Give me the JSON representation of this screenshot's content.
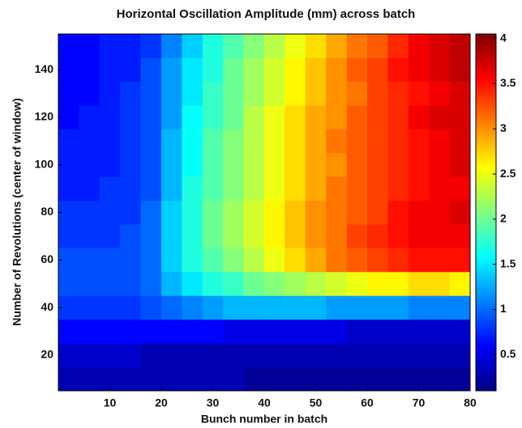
{
  "chart_data": {
    "type": "heatmap",
    "title": "Horizontal Oscillation Amplitude (mm) across batch",
    "x_label": "Bunch number in batch",
    "y_label": "Number of Revolutions (center of window)",
    "x_bins": [
      0,
      4,
      8,
      12,
      16,
      20,
      24,
      28,
      32,
      36,
      40,
      44,
      48,
      52,
      56,
      60,
      64,
      68,
      72,
      76,
      80
    ],
    "y": [
      10,
      20,
      30,
      40,
      50,
      60,
      70,
      80,
      90,
      100,
      110,
      120,
      130,
      140,
      150
    ],
    "z": [
      [
        0.3,
        0.3,
        0.3,
        0.3,
        0.3,
        0.3,
        0.3,
        0.3,
        0.3,
        0.2,
        0.2,
        0.2,
        0.2,
        0.2,
        0.2,
        0.2,
        0.2,
        0.2,
        0.2,
        0.2
      ],
      [
        0.4,
        0.4,
        0.4,
        0.4,
        0.3,
        0.3,
        0.3,
        0.3,
        0.3,
        0.3,
        0.3,
        0.3,
        0.3,
        0.3,
        0.3,
        0.3,
        0.3,
        0.3,
        0.3,
        0.3
      ],
      [
        0.6,
        0.6,
        0.6,
        0.6,
        0.6,
        0.6,
        0.6,
        0.6,
        0.5,
        0.5,
        0.5,
        0.5,
        0.5,
        0.5,
        0.4,
        0.4,
        0.4,
        0.4,
        0.4,
        0.4
      ],
      [
        0.8,
        0.8,
        0.8,
        0.8,
        0.9,
        1.0,
        1.1,
        1.2,
        1.3,
        1.3,
        1.3,
        1.3,
        1.3,
        1.2,
        1.2,
        1.2,
        1.2,
        1.1,
        1.1,
        1.1
      ],
      [
        0.9,
        0.9,
        0.9,
        0.9,
        1.0,
        1.3,
        1.5,
        1.7,
        1.8,
        2.0,
        2.1,
        2.2,
        2.3,
        2.4,
        2.5,
        2.6,
        2.6,
        2.7,
        2.7,
        2.6
      ],
      [
        0.9,
        0.9,
        0.9,
        0.9,
        1.0,
        1.4,
        1.7,
        1.9,
        2.1,
        2.3,
        2.5,
        2.7,
        2.9,
        3.1,
        3.2,
        3.3,
        3.4,
        3.5,
        3.5,
        3.5
      ],
      [
        0.8,
        0.8,
        0.8,
        0.9,
        1.0,
        1.4,
        1.7,
        2.0,
        2.2,
        2.4,
        2.6,
        2.8,
        3.0,
        3.1,
        3.3,
        3.4,
        3.5,
        3.6,
        3.6,
        3.6
      ],
      [
        0.8,
        0.8,
        0.8,
        0.8,
        1.0,
        1.4,
        1.7,
        2.0,
        2.2,
        2.4,
        2.6,
        2.8,
        3.0,
        3.1,
        3.2,
        3.3,
        3.5,
        3.6,
        3.6,
        3.7
      ],
      [
        0.7,
        0.7,
        0.8,
        0.8,
        0.9,
        1.3,
        1.7,
        1.9,
        2.1,
        2.3,
        2.5,
        2.7,
        2.9,
        3.1,
        3.2,
        3.3,
        3.4,
        3.5,
        3.6,
        3.6
      ],
      [
        0.7,
        0.7,
        0.7,
        0.8,
        0.9,
        1.3,
        1.6,
        1.9,
        2.1,
        2.3,
        2.5,
        2.7,
        2.9,
        3.0,
        3.2,
        3.3,
        3.4,
        3.5,
        3.6,
        3.7
      ],
      [
        0.7,
        0.7,
        0.7,
        0.8,
        0.9,
        1.3,
        1.6,
        1.9,
        2.1,
        2.3,
        2.5,
        2.7,
        2.9,
        3.1,
        3.2,
        3.3,
        3.4,
        3.5,
        3.6,
        3.7
      ],
      [
        0.6,
        0.7,
        0.7,
        0.8,
        0.9,
        1.2,
        1.6,
        1.8,
        2.0,
        2.3,
        2.5,
        2.7,
        2.9,
        3.0,
        3.2,
        3.3,
        3.4,
        3.6,
        3.7,
        3.7
      ],
      [
        0.6,
        0.6,
        0.7,
        0.8,
        0.9,
        1.2,
        1.5,
        1.8,
        2.0,
        2.2,
        2.4,
        2.6,
        2.8,
        3.0,
        3.1,
        3.3,
        3.4,
        3.5,
        3.6,
        3.7
      ],
      [
        0.6,
        0.6,
        0.7,
        0.7,
        0.9,
        1.2,
        1.5,
        1.7,
        2.0,
        2.2,
        2.4,
        2.6,
        2.8,
        3.0,
        3.2,
        3.3,
        3.5,
        3.6,
        3.7,
        3.8
      ],
      [
        0.6,
        0.6,
        0.7,
        0.7,
        0.8,
        1.1,
        1.4,
        1.7,
        1.9,
        2.1,
        2.3,
        2.5,
        2.7,
        2.9,
        3.1,
        3.2,
        3.4,
        3.6,
        3.7,
        3.8
      ]
    ],
    "xlim": [
      0,
      80
    ],
    "ylim": [
      5,
      155
    ],
    "xticks": [
      10,
      20,
      30,
      40,
      50,
      60,
      70,
      80
    ],
    "yticks": [
      20,
      40,
      60,
      80,
      100,
      120,
      140
    ],
    "colormap": "jet",
    "clim": [
      0.1,
      4.05
    ],
    "cticks": [
      0.5,
      1,
      1.5,
      2,
      2.5,
      3,
      3.5,
      4
    ]
  }
}
